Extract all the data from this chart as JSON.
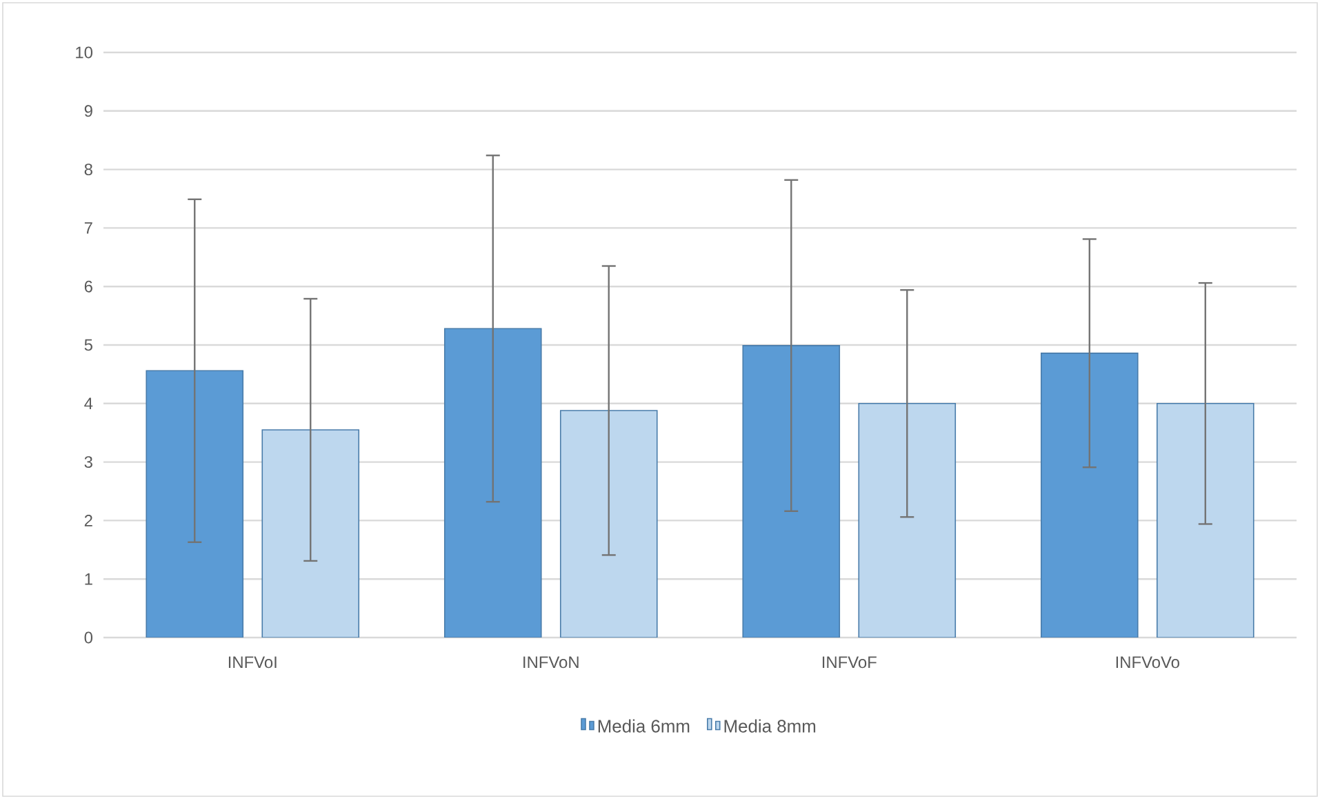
{
  "chart_data": {
    "type": "bar",
    "categories": [
      "INFVoI",
      "INFVoN",
      "INFVoF",
      "INFVoVo"
    ],
    "series": [
      {
        "name": "Media 6mm",
        "color": "#5b9bd5",
        "values": [
          4.56,
          5.28,
          4.99,
          4.86
        ],
        "errors": [
          2.93,
          2.96,
          2.83,
          1.95
        ]
      },
      {
        "name": "Media 8mm",
        "color": "#bdd7ee",
        "values": [
          3.55,
          3.88,
          4.0,
          4.0
        ],
        "errors": [
          2.24,
          2.47,
          1.94,
          2.06
        ]
      }
    ],
    "ylim": [
      0,
      10
    ],
    "yticks": [
      0,
      1,
      2,
      3,
      4,
      5,
      6,
      7,
      8,
      9,
      10
    ],
    "grid": "y",
    "legend": "bottom"
  }
}
